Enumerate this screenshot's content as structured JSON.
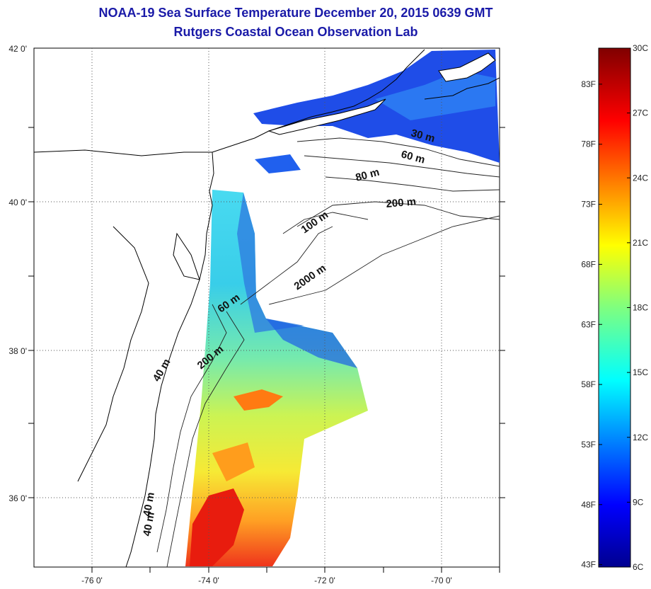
{
  "title": {
    "line1": "NOAA-19 Sea Surface Temperature December 20, 2015 0639 GMT",
    "line2": "Rutgers Coastal Ocean Observation Lab"
  },
  "map": {
    "lon_ticks": [
      "-76 0'",
      "-74 0'",
      "-72 0'",
      "-70 0'"
    ],
    "lat_ticks": [
      "42 0'",
      "40 0'",
      "38 0'",
      "36 0'"
    ],
    "lon_range": [
      -77,
      -69
    ],
    "lat_range": [
      35,
      42
    ],
    "isobath_labels": [
      "30 m",
      "60 m",
      "80 m",
      "200 m",
      "100 m",
      "2000 m",
      "60 m",
      "200 m",
      "40 m",
      "40 m",
      "40 m"
    ],
    "grid": "dotted",
    "land_color": "#ffffff",
    "coast_color": "#000000"
  },
  "colorbar": {
    "celsius_labels": [
      "30C",
      "27C",
      "24C",
      "21C",
      "18C",
      "15C",
      "12C",
      "9C",
      "6C"
    ],
    "fahrenheit_labels": [
      "83F",
      "78F",
      "73F",
      "68F",
      "63F",
      "58F",
      "53F",
      "48F",
      "43F"
    ],
    "colormap": "jet",
    "range_c": [
      6,
      30
    ]
  }
}
